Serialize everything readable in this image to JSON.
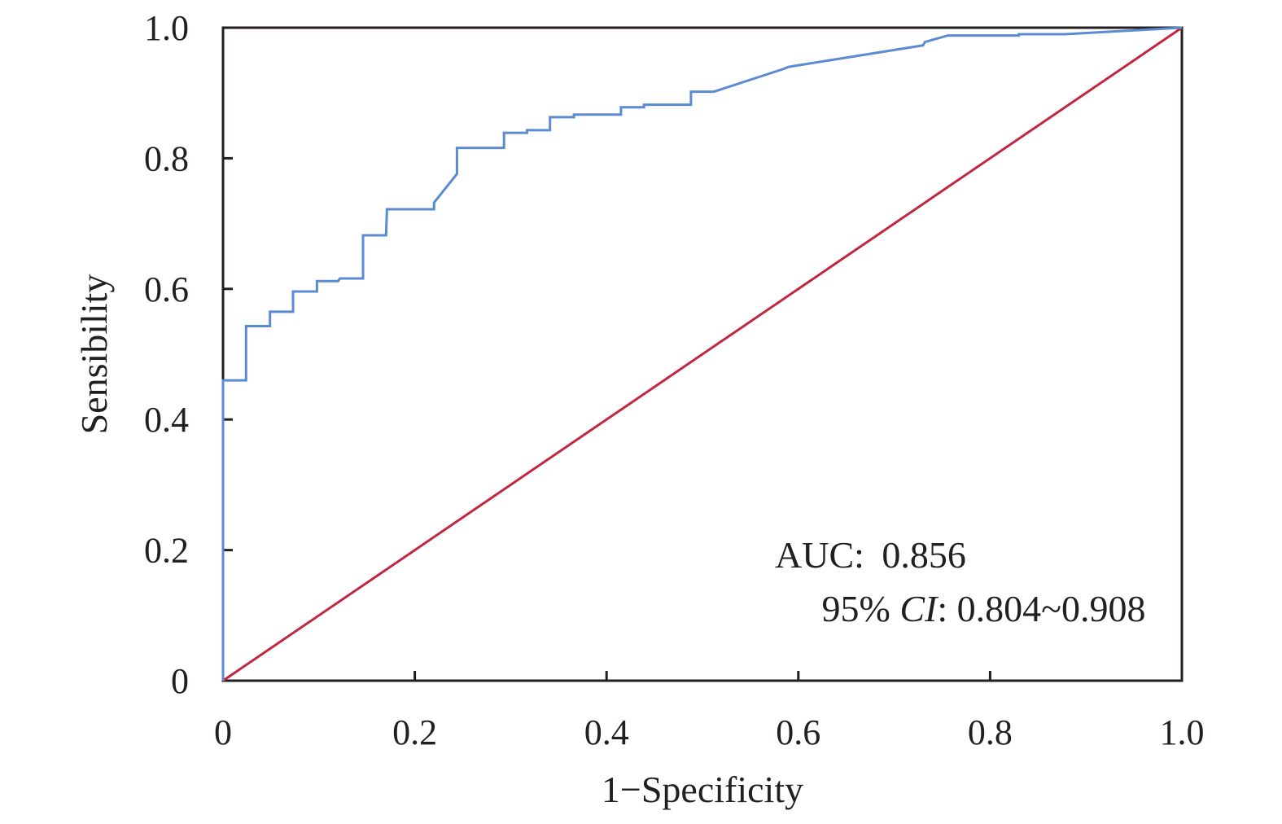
{
  "chart_data": {
    "type": "line",
    "xlabel": "1−Specificity",
    "ylabel": "Sensibility",
    "xlim": [
      0,
      1
    ],
    "ylim": [
      0,
      1
    ],
    "x_ticks": [
      {
        "value": 0,
        "label": "0"
      },
      {
        "value": 0.2,
        "label": "0.2"
      },
      {
        "value": 0.4,
        "label": "0.4"
      },
      {
        "value": 0.6,
        "label": "0.6"
      },
      {
        "value": 0.8,
        "label": "0.8"
      },
      {
        "value": 1.0,
        "label": "1.0"
      }
    ],
    "y_ticks": [
      {
        "value": 0,
        "label": "0"
      },
      {
        "value": 0.2,
        "label": "0.2"
      },
      {
        "value": 0.4,
        "label": "0.4"
      },
      {
        "value": 0.6,
        "label": "0.6"
      },
      {
        "value": 0.8,
        "label": "0.8"
      },
      {
        "value": 1.0,
        "label": "1.0"
      }
    ],
    "grid": false,
    "annotations": {
      "auc_label": "AUC:",
      "auc_value": "0.856",
      "ci_prefix": "95% ",
      "ci_label": "CI",
      "ci_value": ": 0.804~0.908"
    },
    "series": [
      {
        "color": "#5b8bd0",
        "x": [
          0,
          0,
          0.024,
          0.024,
          0.049,
          0.049,
          0.073,
          0.073,
          0.098,
          0.098,
          0.12,
          0.122,
          0.146,
          0.146,
          0.17,
          0.171,
          0.22,
          0.22,
          0.244,
          0.244,
          0.293,
          0.293,
          0.317,
          0.317,
          0.341,
          0.341,
          0.366,
          0.366,
          0.415,
          0.415,
          0.439,
          0.439,
          0.488,
          0.488,
          0.512,
          0.585,
          0.59,
          0.73,
          0.732,
          0.756,
          0.83,
          0.83,
          0.878,
          1.0
        ],
        "y": [
          0,
          0.46,
          0.46,
          0.543,
          0.543,
          0.565,
          0.565,
          0.596,
          0.596,
          0.612,
          0.612,
          0.616,
          0.616,
          0.682,
          0.682,
          0.722,
          0.722,
          0.732,
          0.776,
          0.816,
          0.816,
          0.839,
          0.839,
          0.843,
          0.843,
          0.863,
          0.863,
          0.867,
          0.867,
          0.878,
          0.878,
          0.882,
          0.882,
          0.902,
          0.902,
          0.937,
          0.94,
          0.973,
          0.978,
          0.988,
          0.988,
          0.99,
          0.99,
          1.0
        ]
      },
      {
        "color": "#c1273f",
        "x": [
          0,
          1
        ],
        "y": [
          0,
          1
        ]
      }
    ]
  }
}
